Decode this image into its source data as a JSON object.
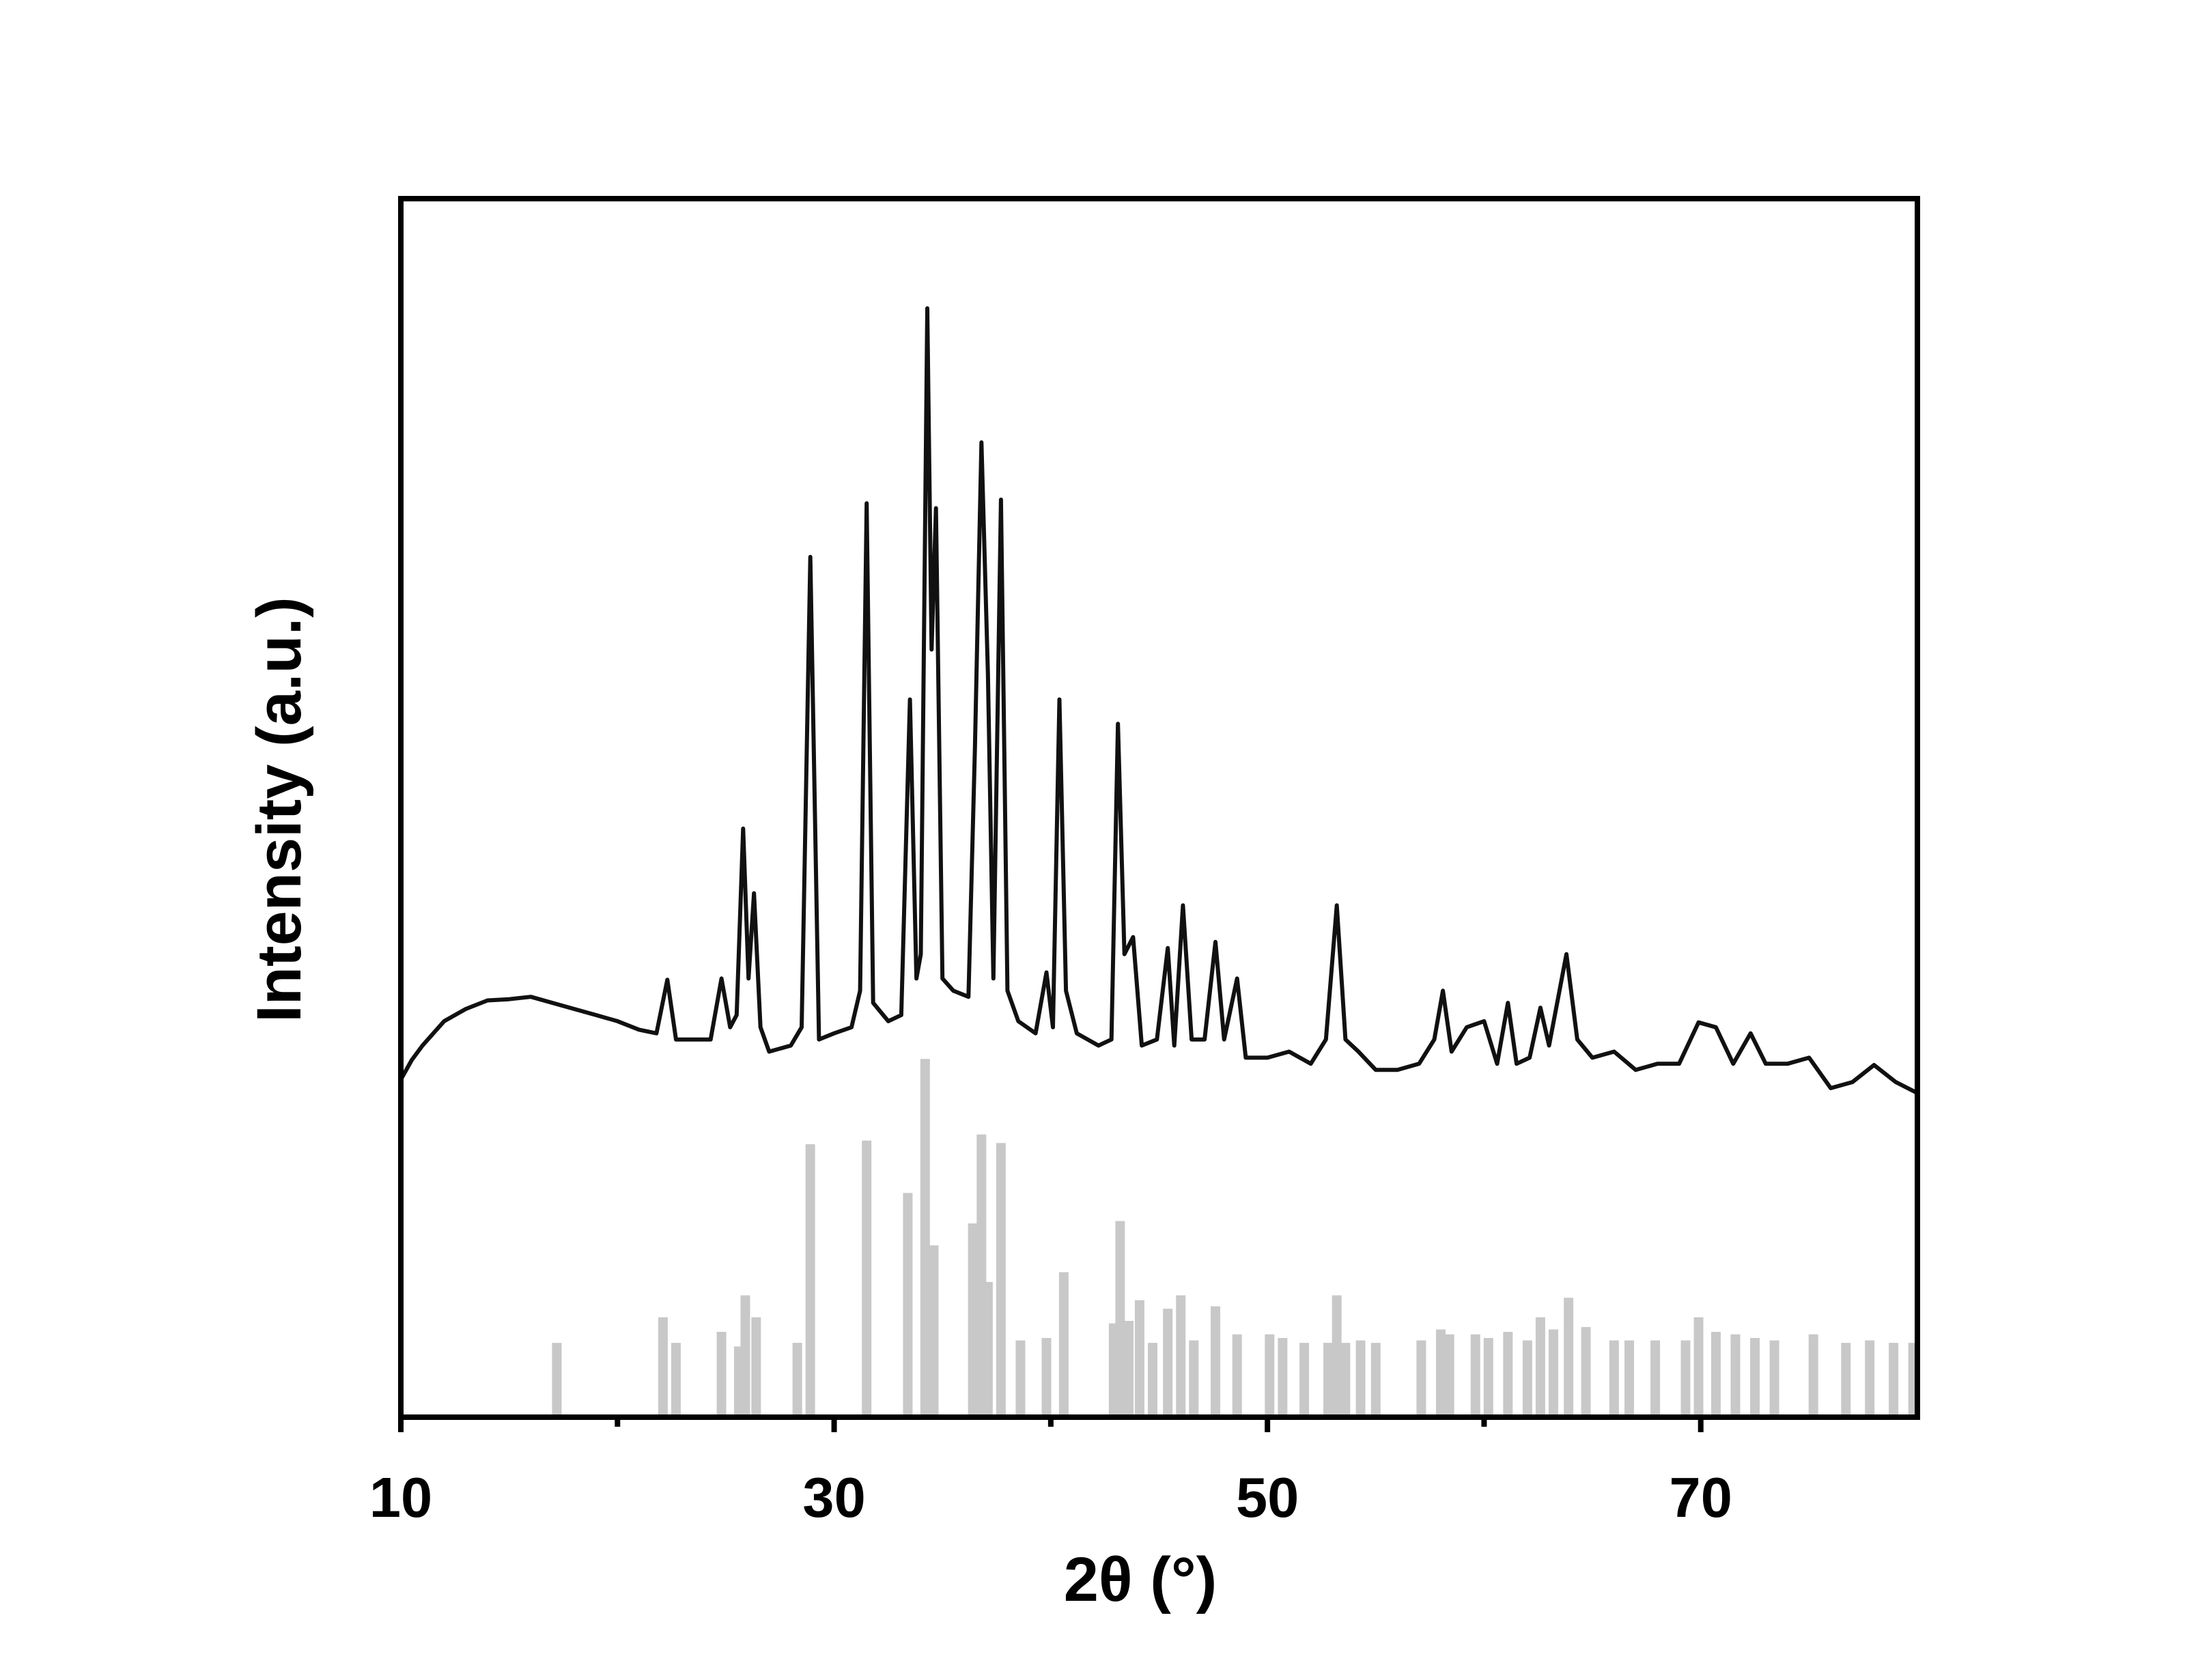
{
  "chart_data": {
    "type": "line",
    "xlabel": "2θ (°)",
    "ylabel": "Intensity (a.u.)",
    "xlim": [
      10,
      80
    ],
    "ylim": [
      0,
      100
    ],
    "xticks": [
      10,
      30,
      50,
      70
    ],
    "xminor_ticks": [
      20,
      40,
      60
    ],
    "color": "#111111",
    "x": [
      10,
      10.5,
      11,
      12,
      13,
      14,
      15,
      16,
      17,
      18,
      19,
      20,
      21,
      21.8,
      22.3,
      22.7,
      23.5,
      24.3,
      24.8,
      25.2,
      25.5,
      25.8,
      26.05,
      26.3,
      26.6,
      27,
      28,
      28.5,
      28.9,
      29.3,
      30,
      30.8,
      31.2,
      31.5,
      31.8,
      32.5,
      33.1,
      33.5,
      33.8,
      34.0,
      34.3,
      34.5,
      34.7,
      35.0,
      35.5,
      36.2,
      36.5,
      36.8,
      37.1,
      37.35,
      37.7,
      38.0,
      38.5,
      39.3,
      39.8,
      40.1,
      40.4,
      40.7,
      41.2,
      42.2,
      42.8,
      43.1,
      43.4,
      43.8,
      44.2,
      44.9,
      45.4,
      45.7,
      46.1,
      46.5,
      47.1,
      47.6,
      48.0,
      48.6,
      49.0,
      50,
      51,
      52,
      52.7,
      53.2,
      53.6,
      54.2,
      55,
      56,
      57,
      57.7,
      58.1,
      58.5,
      59.2,
      60,
      60.6,
      61.1,
      61.5,
      62.1,
      62.6,
      63,
      63.8,
      64.3,
      65,
      66,
      67,
      68,
      69,
      69.9,
      70.7,
      71.5,
      72.3,
      73,
      74,
      75,
      76,
      77,
      78,
      79,
      80
    ],
    "values": [
      27.7,
      29.3,
      30.5,
      32.5,
      33.5,
      34.2,
      34.3,
      34.5,
      34,
      33.5,
      33,
      32.5,
      31.8,
      31.5,
      35.9,
      31,
      31,
      31,
      36,
      32,
      33,
      48.3,
      36,
      43,
      32,
      30,
      30.5,
      32,
      70.6,
      31,
      31.5,
      32,
      35,
      75,
      34,
      32.5,
      33,
      58.9,
      36,
      38,
      91,
      63,
      74.6,
      36,
      35,
      34.5,
      55,
      80,
      61,
      36,
      75.3,
      35,
      32.5,
      31.5,
      36.5,
      32,
      58.9,
      35,
      31.5,
      30.5,
      31,
      56.9,
      38,
      39.4,
      30.5,
      31,
      38.5,
      30.5,
      42,
      31,
      31,
      39,
      31,
      36,
      29.5,
      29.5,
      30,
      29,
      31,
      42,
      31,
      30,
      28.5,
      28.5,
      29,
      31,
      35,
      30,
      32,
      32.5,
      29,
      34,
      29,
      29.5,
      33.6,
      30.5,
      38,
      31,
      29.5,
      30,
      28.5,
      29,
      29,
      32.4,
      32,
      29,
      31.5,
      29,
      29,
      29.5,
      27,
      27.5,
      28.9,
      27.5,
      26.6
    ],
    "reference": {
      "type": "bar",
      "color": "#c8c8c8",
      "x": [
        17.2,
        22.1,
        22.7,
        24.8,
        25.6,
        25.9,
        26.4,
        28.3,
        28.9,
        31.5,
        33.4,
        34.2,
        34.6,
        36.4,
        36.8,
        37.1,
        37.7,
        38.6,
        39.8,
        40.6,
        42.9,
        43.2,
        43.6,
        44.1,
        44.7,
        45.4,
        46.0,
        46.6,
        47.6,
        48.6,
        50.1,
        50.7,
        51.7,
        52.8,
        53.2,
        53.6,
        54.3,
        55.0,
        57.1,
        58.0,
        58.4,
        59.6,
        60.2,
        61.1,
        62.0,
        62.6,
        63.2,
        63.9,
        64.7,
        66.0,
        66.7,
        67.9,
        69.3,
        69.9,
        70.7,
        71.6,
        72.5,
        73.4,
        75.2,
        76.7,
        77.8,
        78.9,
        79.8
      ],
      "values": [
        6.1,
        8.2,
        6.1,
        7,
        5.8,
        10,
        8.2,
        6.1,
        22.4,
        22.7,
        18.4,
        29.4,
        14.1,
        15.9,
        23.2,
        11.1,
        22.5,
        6.3,
        6.5,
        11.9,
        7.7,
        16.1,
        7.9,
        9.6,
        6.1,
        8.9,
        10,
        6.3,
        9.1,
        6.8,
        6.8,
        6.5,
        6.1,
        6.1,
        10,
        6.1,
        6.3,
        6.1,
        6.3,
        7.2,
        6.8,
        6.8,
        6.5,
        7,
        6.3,
        8.2,
        7.2,
        9.8,
        7.4,
        6.3,
        6.3,
        6.3,
        6.3,
        8.2,
        7,
        6.8,
        6.5,
        6.3,
        6.8,
        6.1,
        6.3,
        6.1,
        6.1
      ]
    }
  }
}
